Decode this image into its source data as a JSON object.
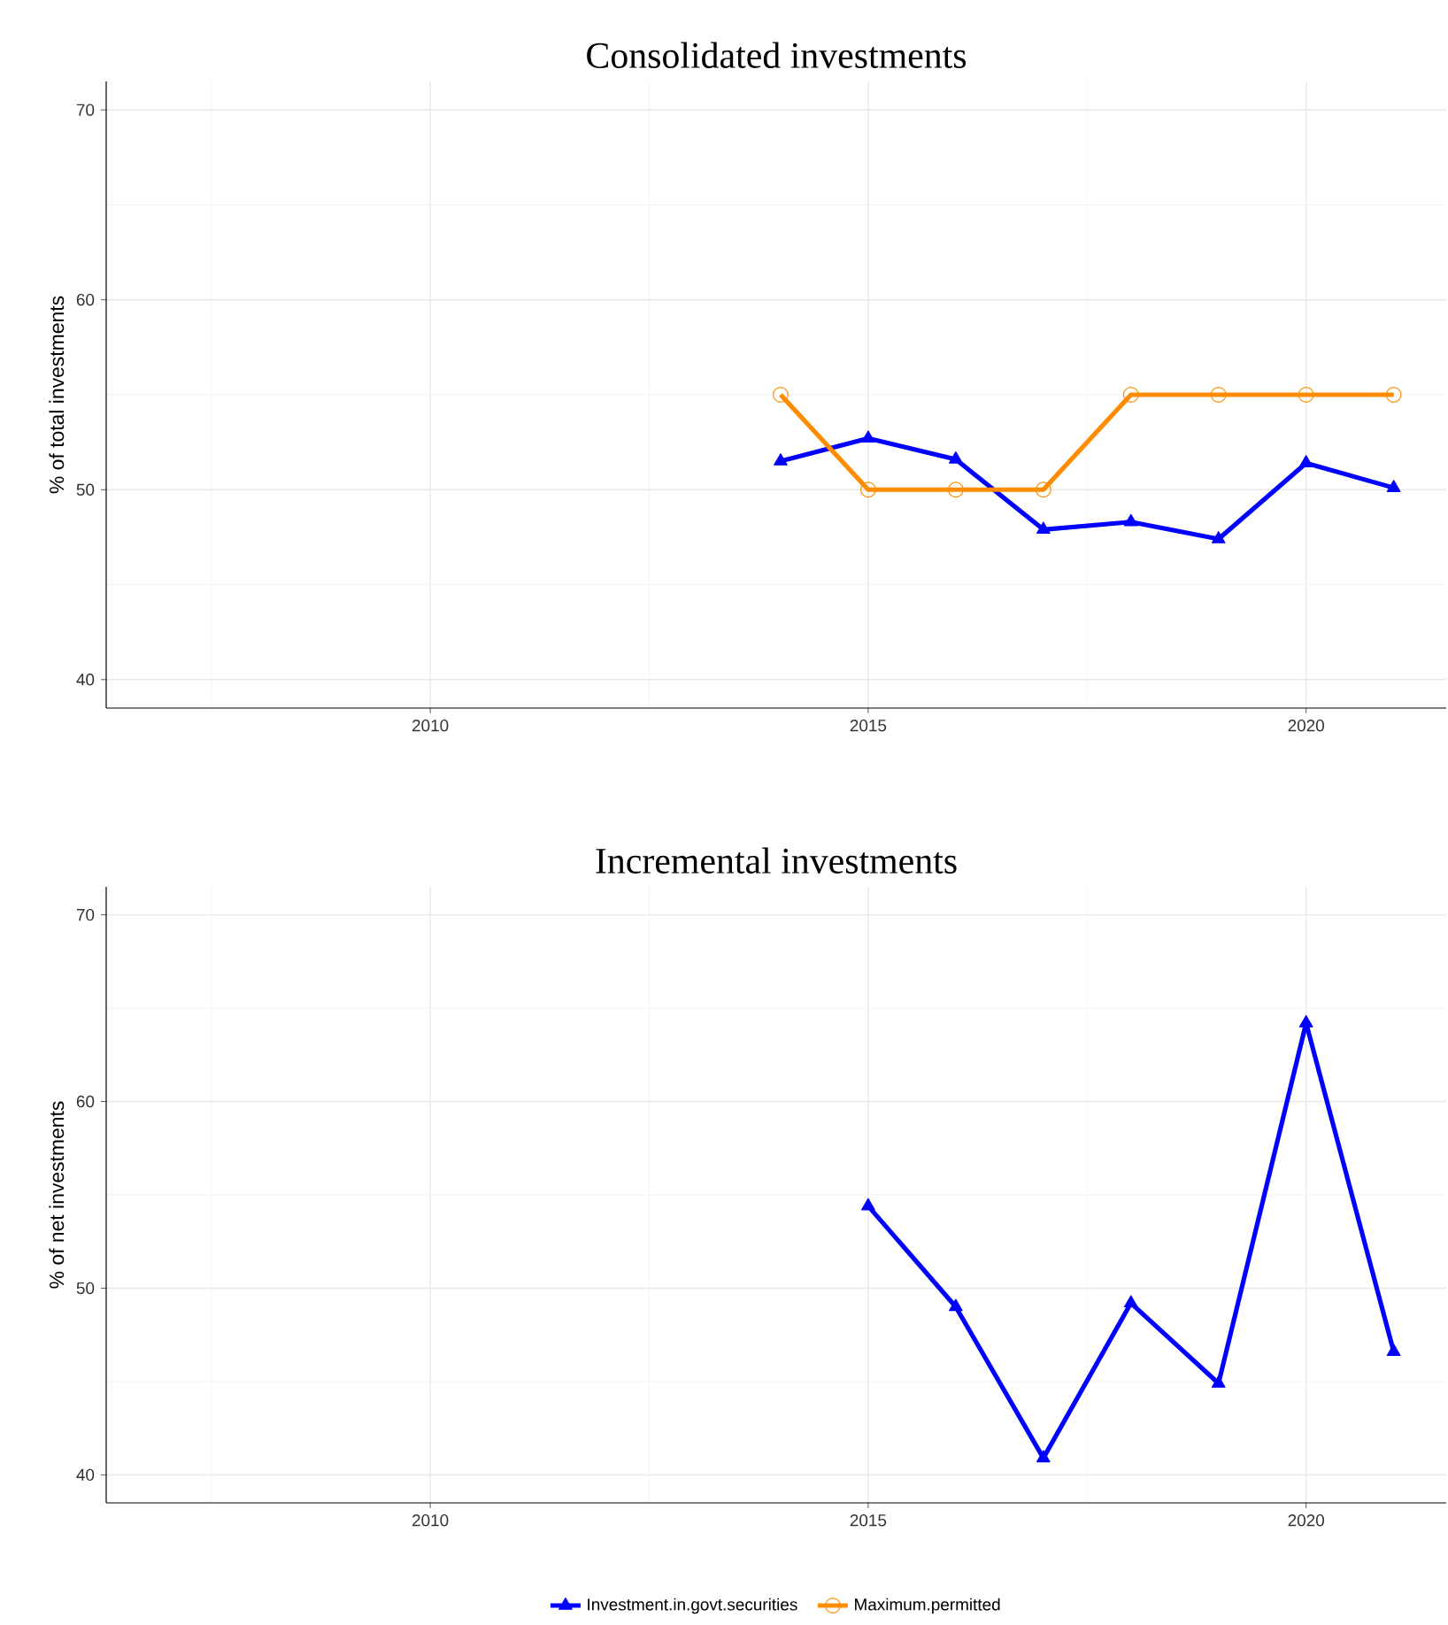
{
  "chart_data": [
    {
      "type": "line",
      "title": "Consolidated investments",
      "ylabel": "% of total investments",
      "x": [
        2014,
        2015,
        2016,
        2017,
        2018,
        2019,
        2020,
        2021
      ],
      "series": [
        {
          "name": "Investment.in.govt.securities",
          "color": "#0000ff",
          "marker": "triangle",
          "values": [
            51.5,
            52.7,
            51.6,
            47.9,
            48.3,
            47.4,
            51.4,
            50.1
          ]
        },
        {
          "name": "Maximum.permitted",
          "color": "#ff8c00",
          "marker": "circle",
          "values": [
            55,
            50,
            50,
            50,
            55,
            55,
            55,
            55
          ]
        }
      ],
      "xlim": [
        2006.3,
        2021.6
      ],
      "xticks": [
        2010,
        2015,
        2020
      ],
      "ylim": [
        38.5,
        71.5
      ],
      "yticks": [
        40,
        50,
        60,
        70
      ],
      "grid": true,
      "legend": "bottom"
    },
    {
      "type": "line",
      "title": "Incremental investments",
      "ylabel": "% of net investments",
      "x": [
        2015,
        2016,
        2017,
        2018,
        2019,
        2020,
        2021
      ],
      "series": [
        {
          "color": "#0000ff",
          "marker": "triangle",
          "values": [
            54.4,
            49.0,
            40.9,
            49.2,
            44.9,
            64.2,
            46.6
          ]
        }
      ],
      "xlim": [
        2006.3,
        2021.6
      ],
      "xticks": [
        2010,
        2015,
        2020
      ],
      "ylim": [
        38.5,
        71.5
      ],
      "yticks": [
        40,
        50,
        60,
        70
      ],
      "grid": true
    }
  ]
}
